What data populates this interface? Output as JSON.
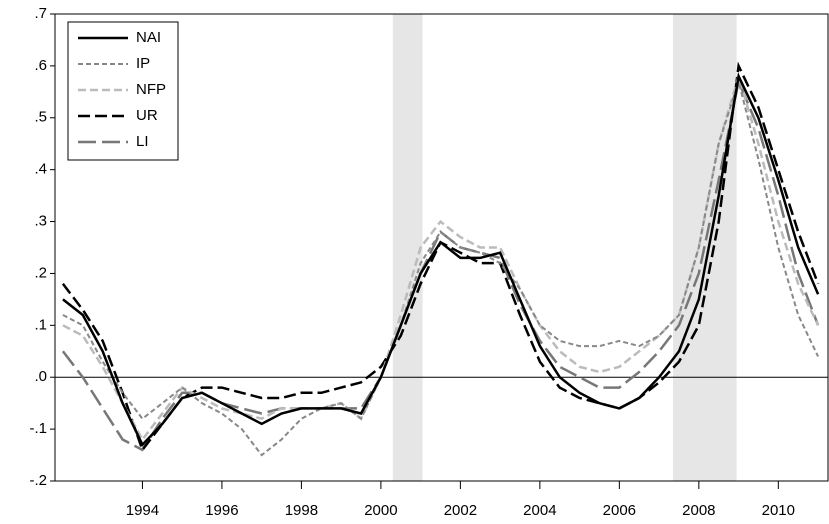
{
  "chart_data": {
    "type": "line",
    "x": [
      1992.5,
      1993,
      1993.5,
      1994,
      1994.5,
      1995,
      1995.5,
      1996,
      1996.5,
      1997,
      1997.5,
      1998,
      1998.5,
      1999,
      1999.5,
      2000,
      2000.5,
      2001,
      2001.5,
      2002,
      2002.5,
      2003,
      2003.5,
      2004,
      2004.5,
      2005,
      2005.5,
      2006,
      2006.5,
      2007,
      2007.5,
      2008,
      2008.5,
      2009,
      2009.5,
      2010,
      2010.5,
      2011,
      2011.5
    ],
    "series": [
      {
        "name": "NAI",
        "color": "#000000",
        "dash": "none",
        "width": 2.5,
        "values": [
          0.15,
          0.12,
          0.05,
          -0.05,
          -0.13,
          -0.09,
          -0.04,
          -0.03,
          -0.05,
          -0.07,
          -0.09,
          -0.07,
          -0.06,
          -0.06,
          -0.06,
          -0.07,
          0.0,
          0.1,
          0.2,
          0.26,
          0.23,
          0.23,
          0.24,
          0.15,
          0.06,
          0.0,
          -0.03,
          -0.05,
          -0.06,
          -0.04,
          0.0,
          0.05,
          0.15,
          0.35,
          0.58,
          0.5,
          0.38,
          0.25,
          0.16
        ]
      },
      {
        "name": "IP",
        "color": "#888888",
        "dash": "5 3",
        "width": 2,
        "values": [
          0.12,
          0.1,
          0.03,
          -0.03,
          -0.08,
          -0.05,
          -0.02,
          -0.05,
          -0.07,
          -0.1,
          -0.15,
          -0.12,
          -0.08,
          -0.06,
          -0.05,
          -0.08,
          0.0,
          0.1,
          0.22,
          0.28,
          0.25,
          0.24,
          0.22,
          0.17,
          0.1,
          0.07,
          0.06,
          0.06,
          0.07,
          0.06,
          0.08,
          0.12,
          0.25,
          0.45,
          0.57,
          0.42,
          0.25,
          0.12,
          0.04
        ]
      },
      {
        "name": "NFP",
        "color": "#bbbbbb",
        "dash": "8 4",
        "width": 2.5,
        "values": [
          0.1,
          0.08,
          0.02,
          -0.05,
          -0.12,
          -0.07,
          -0.02,
          -0.04,
          -0.06,
          -0.07,
          -0.08,
          -0.06,
          -0.06,
          -0.06,
          -0.05,
          -0.08,
          0.0,
          0.12,
          0.25,
          0.3,
          0.27,
          0.25,
          0.25,
          0.17,
          0.1,
          0.05,
          0.02,
          0.01,
          0.02,
          0.05,
          0.08,
          0.12,
          0.25,
          0.45,
          0.58,
          0.45,
          0.3,
          0.18,
          0.1
        ]
      },
      {
        "name": "UR",
        "color": "#000000",
        "dash": "12 5",
        "width": 2.5,
        "values": [
          0.18,
          0.13,
          0.07,
          -0.03,
          -0.14,
          -0.09,
          -0.04,
          -0.02,
          -0.02,
          -0.03,
          -0.04,
          -0.04,
          -0.03,
          -0.03,
          -0.02,
          -0.01,
          0.02,
          0.08,
          0.18,
          0.26,
          0.24,
          0.22,
          0.22,
          0.12,
          0.03,
          -0.02,
          -0.04,
          -0.05,
          -0.06,
          -0.04,
          -0.01,
          0.03,
          0.1,
          0.3,
          0.6,
          0.52,
          0.4,
          0.28,
          0.18
        ]
      },
      {
        "name": "LI",
        "color": "#777777",
        "dash": "18 6",
        "width": 2.5,
        "values": [
          0.05,
          0.0,
          -0.06,
          -0.12,
          -0.14,
          -0.08,
          -0.03,
          -0.03,
          -0.05,
          -0.06,
          -0.07,
          -0.06,
          -0.06,
          -0.06,
          -0.06,
          -0.06,
          0.0,
          0.1,
          0.2,
          0.28,
          0.25,
          0.24,
          0.23,
          0.14,
          0.07,
          0.02,
          0.0,
          -0.02,
          -0.02,
          0.01,
          0.05,
          0.1,
          0.2,
          0.38,
          0.57,
          0.48,
          0.35,
          0.2,
          0.1
        ]
      }
    ],
    "xlim": [
      1992.3,
      2011.75
    ],
    "xticks": [
      {
        "value": 1994.5,
        "label": "1994"
      },
      {
        "value": 1996.5,
        "label": "1996"
      },
      {
        "value": 1998.5,
        "label": "1998"
      },
      {
        "value": 2000.5,
        "label": "2000"
      },
      {
        "value": 2002.5,
        "label": "2002"
      },
      {
        "value": 2004.5,
        "label": "2004"
      },
      {
        "value": 2006.5,
        "label": "2006"
      },
      {
        "value": 2008.5,
        "label": "2008"
      },
      {
        "value": 2010.5,
        "label": "2010"
      }
    ],
    "ylim": [
      -0.2,
      0.7
    ],
    "yticks": [
      {
        "value": -0.2,
        "label": "-.2"
      },
      {
        "value": -0.1,
        "label": "-.1"
      },
      {
        "value": 0,
        "label": ".0"
      },
      {
        "value": 0.1,
        "label": ".1"
      },
      {
        "value": 0.2,
        "label": ".2"
      },
      {
        "value": 0.3,
        "label": ".3"
      },
      {
        "value": 0.4,
        "label": ".4"
      },
      {
        "value": 0.5,
        "label": ".5"
      },
      {
        "value": 0.6,
        "label": ".6"
      },
      {
        "value": 0.7,
        "label": ".7"
      }
    ],
    "shaded_periods": [
      [
        2000.8,
        2001.55
      ],
      [
        2007.85,
        2009.45
      ]
    ],
    "zero_line": true,
    "legend": "upper-left"
  }
}
